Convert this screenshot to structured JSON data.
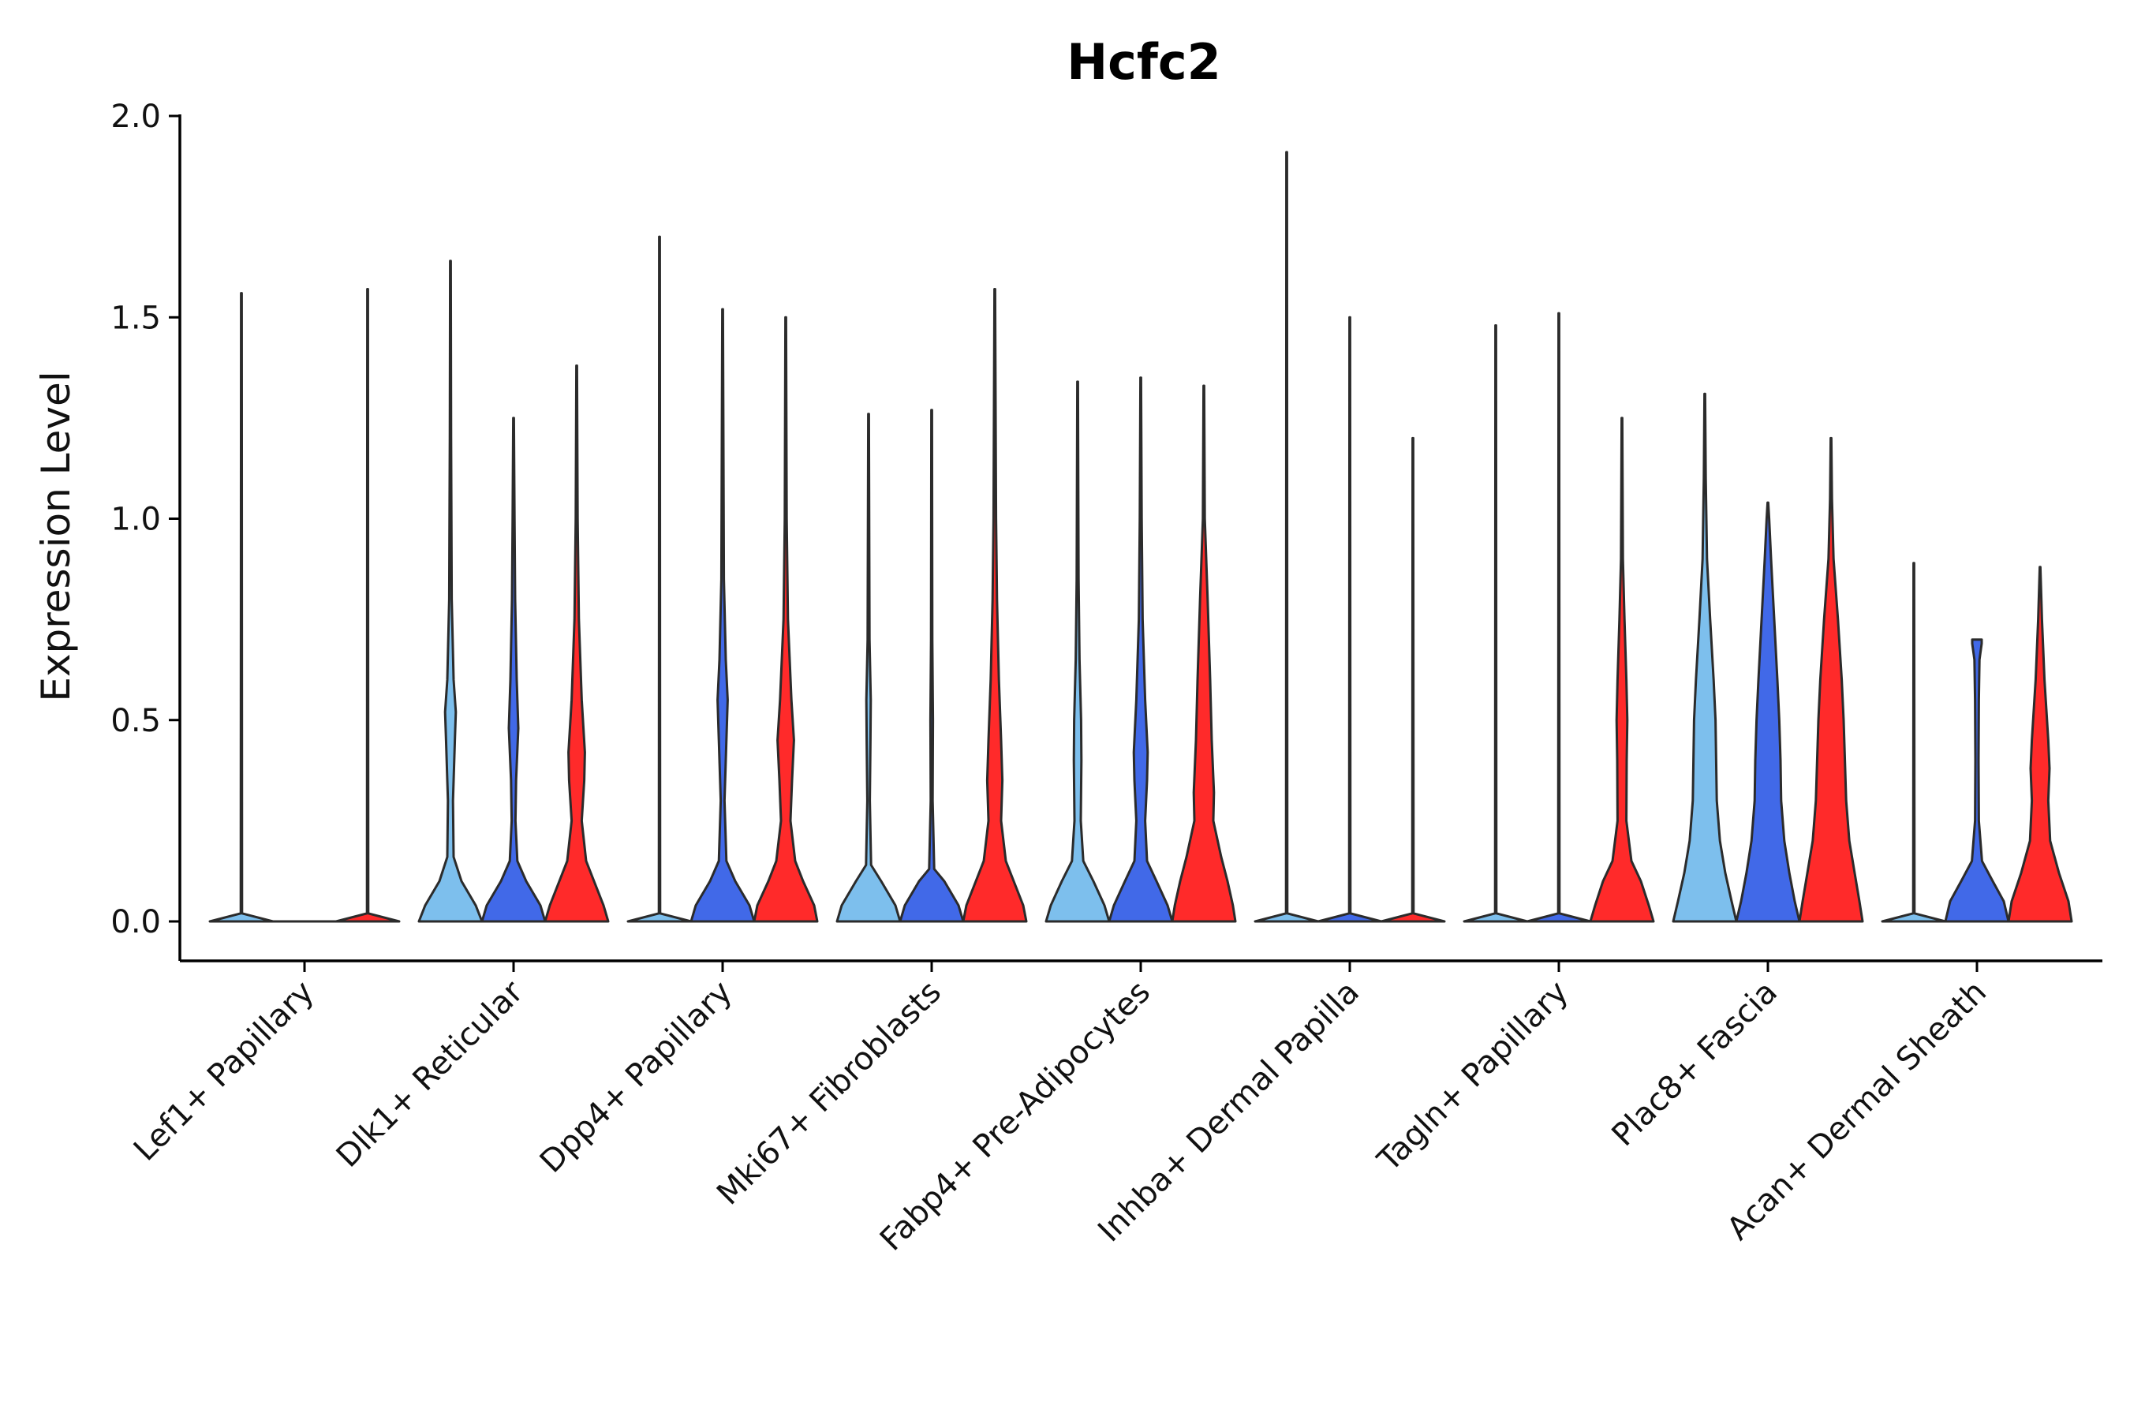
{
  "chart_data": {
    "type": "violin",
    "title": "Hcfc2",
    "xlabel": "",
    "ylabel": "Expression Level",
    "ylim": [
      -0.1,
      2.0
    ],
    "yticks": [
      "0.0",
      "0.5",
      "1.0",
      "1.5",
      "2.0"
    ],
    "grid": false,
    "legend": "none",
    "groups_per_category": 3,
    "group_colors": [
      "#7dbfed",
      "#4169e8",
      "#ff2a2a"
    ],
    "categories": [
      "Lef1+ Papillary",
      "Dlk1+ Reticular",
      "Dpp4+ Papillary",
      "Mki67+ Fibroblasts",
      "Fabp4+ Pre-Adipocytes",
      "Inhba+ Dermal Papilla",
      "Tagln+ Papillary",
      "Plac8+ Fascia",
      "Acan+ Dermal Sheath"
    ],
    "violins": [
      [
        {
          "max": 1.56,
          "profile": [
            [
              0,
              1
            ],
            [
              0.02,
              0.02
            ],
            [
              1.56,
              0.01
            ]
          ]
        },
        {
          "max": 0.0,
          "profile": [
            [
              0,
              1
            ]
          ]
        },
        {
          "max": 1.57,
          "profile": [
            [
              0,
              1
            ],
            [
              0.02,
              0.02
            ],
            [
              1.57,
              0.01
            ]
          ]
        }
      ],
      [
        {
          "max": 1.64,
          "profile": [
            [
              0,
              1
            ],
            [
              0.04,
              0.8
            ],
            [
              0.1,
              0.35
            ],
            [
              0.16,
              0.1
            ],
            [
              0.3,
              0.08
            ],
            [
              0.45,
              0.14
            ],
            [
              0.52,
              0.17
            ],
            [
              0.6,
              0.1
            ],
            [
              0.8,
              0.04
            ],
            [
              1.2,
              0.02
            ],
            [
              1.64,
              0.01
            ]
          ]
        },
        {
          "max": 1.25,
          "profile": [
            [
              0,
              1
            ],
            [
              0.04,
              0.85
            ],
            [
              0.1,
              0.4
            ],
            [
              0.15,
              0.12
            ],
            [
              0.25,
              0.06
            ],
            [
              0.35,
              0.08
            ],
            [
              0.48,
              0.15
            ],
            [
              0.6,
              0.1
            ],
            [
              0.8,
              0.05
            ],
            [
              1.0,
              0.03
            ],
            [
              1.25,
              0.01
            ]
          ]
        },
        {
          "max": 1.38,
          "profile": [
            [
              0,
              1
            ],
            [
              0.04,
              0.85
            ],
            [
              0.1,
              0.55
            ],
            [
              0.15,
              0.3
            ],
            [
              0.25,
              0.16
            ],
            [
              0.35,
              0.24
            ],
            [
              0.42,
              0.26
            ],
            [
              0.55,
              0.16
            ],
            [
              0.75,
              0.07
            ],
            [
              1.0,
              0.03
            ],
            [
              1.38,
              0.01
            ]
          ]
        }
      ],
      [
        {
          "max": 1.7,
          "profile": [
            [
              0,
              1
            ],
            [
              0.02,
              0.02
            ],
            [
              1.7,
              0.01
            ]
          ]
        },
        {
          "max": 1.52,
          "profile": [
            [
              0,
              1
            ],
            [
              0.04,
              0.85
            ],
            [
              0.1,
              0.4
            ],
            [
              0.15,
              0.12
            ],
            [
              0.3,
              0.06
            ],
            [
              0.45,
              0.12
            ],
            [
              0.55,
              0.16
            ],
            [
              0.65,
              0.1
            ],
            [
              0.85,
              0.04
            ],
            [
              1.52,
              0.01
            ]
          ]
        },
        {
          "max": 1.5,
          "profile": [
            [
              0,
              1
            ],
            [
              0.04,
              0.9
            ],
            [
              0.1,
              0.55
            ],
            [
              0.15,
              0.3
            ],
            [
              0.25,
              0.15
            ],
            [
              0.35,
              0.2
            ],
            [
              0.45,
              0.26
            ],
            [
              0.55,
              0.18
            ],
            [
              0.75,
              0.07
            ],
            [
              1.0,
              0.03
            ],
            [
              1.5,
              0.01
            ]
          ]
        }
      ],
      [
        {
          "max": 1.26,
          "profile": [
            [
              0,
              1
            ],
            [
              0.04,
              0.85
            ],
            [
              0.1,
              0.4
            ],
            [
              0.14,
              0.08
            ],
            [
              0.3,
              0.04
            ],
            [
              0.45,
              0.06
            ],
            [
              0.55,
              0.07
            ],
            [
              0.7,
              0.03
            ],
            [
              1.26,
              0.01
            ]
          ]
        },
        {
          "max": 1.27,
          "profile": [
            [
              0,
              1
            ],
            [
              0.04,
              0.85
            ],
            [
              0.1,
              0.4
            ],
            [
              0.13,
              0.08
            ],
            [
              0.3,
              0.03
            ],
            [
              0.5,
              0.04
            ],
            [
              0.7,
              0.02
            ],
            [
              1.27,
              0.01
            ]
          ]
        },
        {
          "max": 1.57,
          "profile": [
            [
              0,
              1
            ],
            [
              0.04,
              0.9
            ],
            [
              0.1,
              0.6
            ],
            [
              0.15,
              0.35
            ],
            [
              0.25,
              0.2
            ],
            [
              0.35,
              0.24
            ],
            [
              0.45,
              0.2
            ],
            [
              0.6,
              0.13
            ],
            [
              0.8,
              0.07
            ],
            [
              1.0,
              0.04
            ],
            [
              1.57,
              0.01
            ]
          ]
        }
      ],
      [
        {
          "max": 1.34,
          "profile": [
            [
              0,
              1
            ],
            [
              0.04,
              0.85
            ],
            [
              0.1,
              0.5
            ],
            [
              0.15,
              0.18
            ],
            [
              0.25,
              0.1
            ],
            [
              0.4,
              0.12
            ],
            [
              0.5,
              0.11
            ],
            [
              0.65,
              0.06
            ],
            [
              0.85,
              0.03
            ],
            [
              1.34,
              0.01
            ]
          ]
        },
        {
          "max": 1.35,
          "profile": [
            [
              0,
              1
            ],
            [
              0.04,
              0.85
            ],
            [
              0.1,
              0.5
            ],
            [
              0.15,
              0.2
            ],
            [
              0.25,
              0.14
            ],
            [
              0.35,
              0.2
            ],
            [
              0.42,
              0.22
            ],
            [
              0.55,
              0.14
            ],
            [
              0.75,
              0.06
            ],
            [
              1.0,
              0.03
            ],
            [
              1.35,
              0.01
            ]
          ]
        },
        {
          "max": 1.33,
          "profile": [
            [
              0,
              1
            ],
            [
              0.04,
              0.92
            ],
            [
              0.1,
              0.75
            ],
            [
              0.16,
              0.55
            ],
            [
              0.25,
              0.3
            ],
            [
              0.32,
              0.32
            ],
            [
              0.45,
              0.25
            ],
            [
              0.6,
              0.2
            ],
            [
              0.8,
              0.12
            ],
            [
              1.0,
              0.03
            ],
            [
              1.33,
              0.01
            ]
          ]
        }
      ],
      [
        {
          "max": 1.91,
          "profile": [
            [
              0,
              1
            ],
            [
              0.02,
              0.02
            ],
            [
              1.91,
              0.01
            ]
          ]
        },
        {
          "max": 1.5,
          "profile": [
            [
              0,
              1
            ],
            [
              0.02,
              0.02
            ],
            [
              1.5,
              0.01
            ]
          ]
        },
        {
          "max": 1.2,
          "profile": [
            [
              0,
              1
            ],
            [
              0.02,
              0.02
            ],
            [
              1.2,
              0.01
            ]
          ]
        }
      ],
      [
        {
          "max": 1.48,
          "profile": [
            [
              0,
              1
            ],
            [
              0.02,
              0.02
            ],
            [
              1.48,
              0.01
            ]
          ]
        },
        {
          "max": 1.51,
          "profile": [
            [
              0,
              1
            ],
            [
              0.02,
              0.02
            ],
            [
              1.51,
              0.01
            ]
          ]
        },
        {
          "max": 1.25,
          "profile": [
            [
              0,
              1
            ],
            [
              0.04,
              0.85
            ],
            [
              0.1,
              0.6
            ],
            [
              0.15,
              0.3
            ],
            [
              0.25,
              0.14
            ],
            [
              0.4,
              0.15
            ],
            [
              0.5,
              0.17
            ],
            [
              0.6,
              0.14
            ],
            [
              0.75,
              0.08
            ],
            [
              0.9,
              0.03
            ],
            [
              1.25,
              0.01
            ]
          ]
        }
      ],
      [
        {
          "max": 1.31,
          "profile": [
            [
              0,
              1
            ],
            [
              0.05,
              0.85
            ],
            [
              0.12,
              0.65
            ],
            [
              0.2,
              0.48
            ],
            [
              0.3,
              0.38
            ],
            [
              0.4,
              0.36
            ],
            [
              0.5,
              0.34
            ],
            [
              0.6,
              0.28
            ],
            [
              0.75,
              0.17
            ],
            [
              0.9,
              0.07
            ],
            [
              1.1,
              0.03
            ],
            [
              1.31,
              0.01
            ]
          ]
        },
        {
          "max": 1.04,
          "profile": [
            [
              0,
              1
            ],
            [
              0.05,
              0.85
            ],
            [
              0.12,
              0.68
            ],
            [
              0.2,
              0.52
            ],
            [
              0.3,
              0.42
            ],
            [
              0.4,
              0.4
            ],
            [
              0.5,
              0.36
            ],
            [
              0.6,
              0.3
            ],
            [
              0.75,
              0.2
            ],
            [
              0.9,
              0.1
            ],
            [
              1.0,
              0.04
            ],
            [
              1.04,
              0.01
            ]
          ]
        },
        {
          "max": 1.2,
          "profile": [
            [
              0,
              1
            ],
            [
              0.05,
              0.9
            ],
            [
              0.12,
              0.75
            ],
            [
              0.2,
              0.58
            ],
            [
              0.3,
              0.48
            ],
            [
              0.4,
              0.44
            ],
            [
              0.5,
              0.4
            ],
            [
              0.6,
              0.34
            ],
            [
              0.75,
              0.22
            ],
            [
              0.9,
              0.08
            ],
            [
              1.05,
              0.03
            ],
            [
              1.2,
              0.01
            ]
          ]
        }
      ],
      [
        {
          "max": 0.89,
          "profile": [
            [
              0,
              1
            ],
            [
              0.02,
              0.02
            ],
            [
              0.89,
              0.01
            ]
          ]
        },
        {
          "max": 0.7,
          "profile": [
            [
              0,
              1
            ],
            [
              0.05,
              0.85
            ],
            [
              0.1,
              0.5
            ],
            [
              0.15,
              0.16
            ],
            [
              0.25,
              0.06
            ],
            [
              0.4,
              0.05
            ],
            [
              0.55,
              0.06
            ],
            [
              0.65,
              0.08
            ],
            [
              0.69,
              0.15
            ],
            [
              0.7,
              0.15
            ]
          ]
        },
        {
          "max": 0.88,
          "profile": [
            [
              0,
              1
            ],
            [
              0.05,
              0.9
            ],
            [
              0.12,
              0.6
            ],
            [
              0.2,
              0.32
            ],
            [
              0.3,
              0.26
            ],
            [
              0.38,
              0.3
            ],
            [
              0.45,
              0.26
            ],
            [
              0.6,
              0.14
            ],
            [
              0.75,
              0.06
            ],
            [
              0.88,
              0.01
            ]
          ]
        }
      ]
    ]
  }
}
